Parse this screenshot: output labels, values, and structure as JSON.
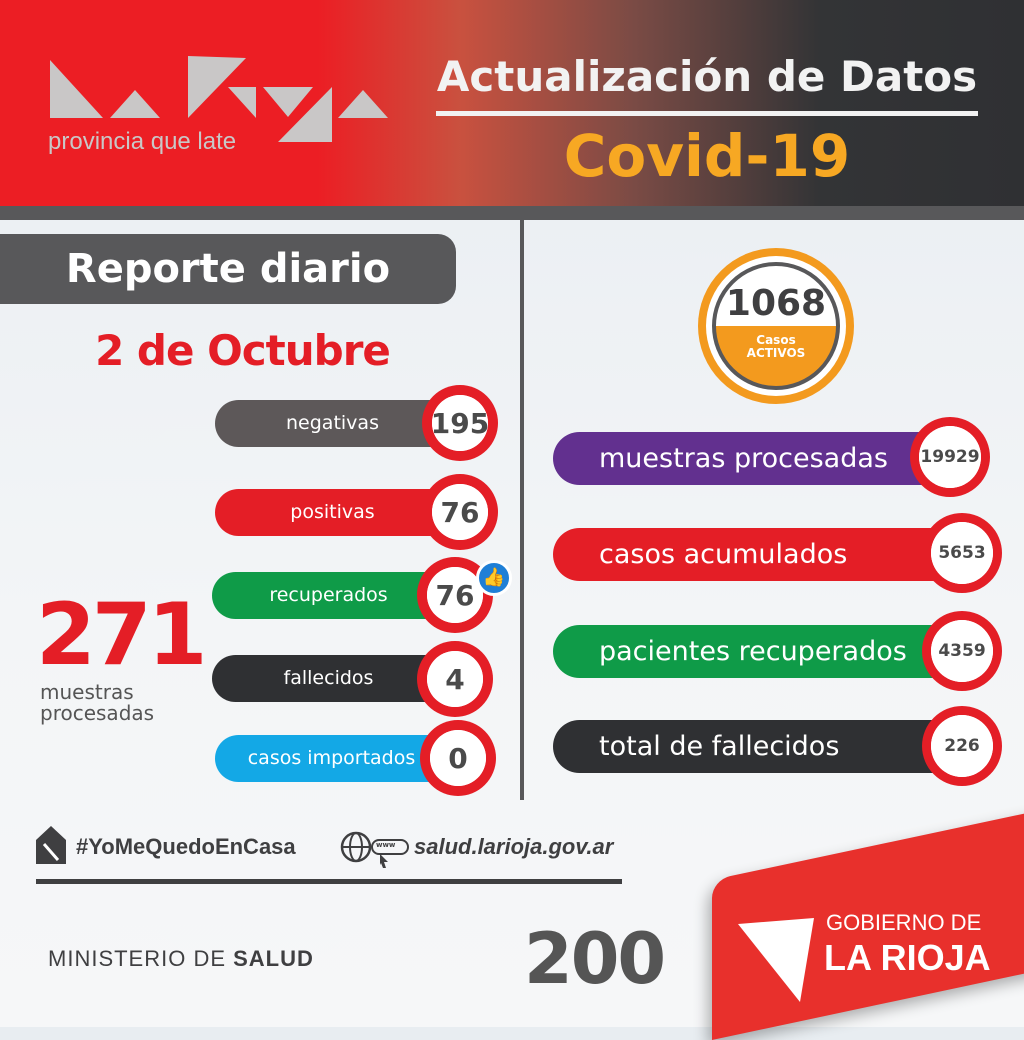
{
  "header": {
    "logo_text": "La Rioja",
    "tagline": "provincia que late",
    "title": "Actualización de Datos",
    "subtitle": "Covid-19"
  },
  "report": {
    "title": "Reporte diario",
    "date": "2 de Octubre",
    "items": [
      {
        "label": "negativas",
        "value": "195",
        "color": "#5d5859"
      },
      {
        "label": "positivas",
        "value": "76",
        "color": "#e41e26"
      },
      {
        "label": "recuperados",
        "value": "76",
        "color": "#0f9b48"
      },
      {
        "label": "fallecidos",
        "value": "4",
        "color": "#2f3033"
      },
      {
        "label": "casos importados",
        "value": "0",
        "color": "#13a8e6"
      }
    ],
    "total": {
      "value": "271",
      "label": "muestras procesadas"
    }
  },
  "active": {
    "value": "1068",
    "label_top": "Casos",
    "label_bottom": "ACTIVOS",
    "color": "#f39a1e"
  },
  "totals": [
    {
      "label": "muestras procesadas",
      "value": "19929",
      "color": "#62308f"
    },
    {
      "label": "casos acumulados",
      "value": "5653",
      "color": "#e41e26"
    },
    {
      "label": "pacientes recuperados",
      "value": "4359",
      "color": "#0f9b48"
    },
    {
      "label": "total de fallecidos",
      "value": "226",
      "color": "#2f3033"
    }
  ],
  "footer": {
    "hashtag": "#YoMeQuedoEnCasa",
    "www": "www",
    "website": "salud.larioja.gov.ar",
    "ministry_a": "MINISTERIO DE ",
    "ministry_b": "SALUD",
    "anniv": "200",
    "gov_line1": "GOBIERNO DE",
    "gov_line2": "LA RIOJA"
  }
}
